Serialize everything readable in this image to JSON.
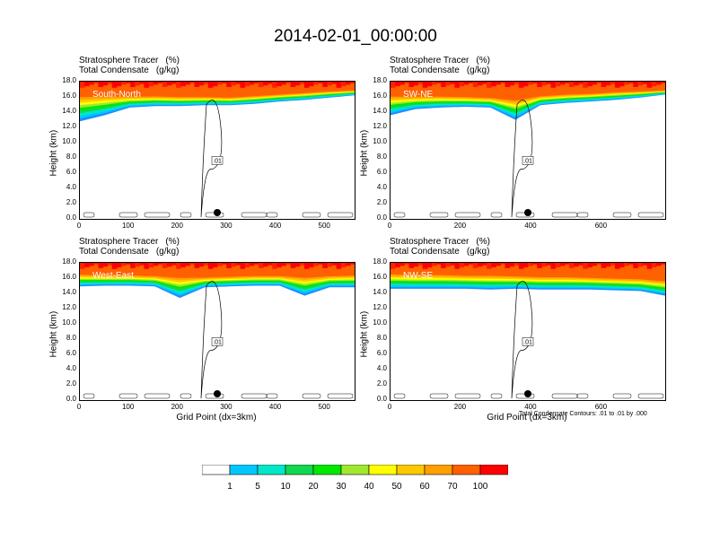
{
  "title": "2014-02-01_00:00:00",
  "header_line1": "Stratosphere Tracer",
  "header_line1_unit": "(%)",
  "header_line2": "Total Condensate",
  "header_line2_unit": "(g/kg)",
  "ylabel": "Height (km)",
  "xlabel": "Grid Point (dx=3km)",
  "footnote": "Total Condensate Contours: .01 to .01 by .000",
  "contour_label": ".01",
  "yticks": [
    "0.0",
    "2.0",
    "4.0",
    "6.0",
    "8.0",
    "10.0",
    "12.0",
    "14.0",
    "16.0",
    "18.0"
  ],
  "colors": {
    "fill": [
      "#ffffff",
      "#1e8bff",
      "#00c8ff",
      "#00e8c8",
      "#10d850",
      "#00e800",
      "#a0e830",
      "#ffff00",
      "#ffc800",
      "#ffa000",
      "#ff6000",
      "#ff0000"
    ]
  },
  "colorbar": {
    "labels": [
      "1",
      "5",
      "10",
      "20",
      "30",
      "40",
      "50",
      "60",
      "70",
      "100"
    ]
  },
  "chart_data": [
    {
      "type": "heatmap",
      "panel_label": "South-North",
      "x_range": [
        0,
        560
      ],
      "xticks": [
        "0",
        "100",
        "200",
        "300",
        "400",
        "500"
      ],
      "ylim": [
        0,
        18
      ],
      "tracer_100_base_km": [
        16.3,
        16.3,
        16.2,
        16.2,
        16.1,
        16.1,
        16.0,
        16.2,
        16.4,
        16.6,
        16.8,
        16.9
      ],
      "tracer_1_base_km": [
        12.8,
        13.6,
        14.6,
        14.8,
        14.8,
        14.9,
        14.9,
        15.1,
        15.4,
        15.6,
        15.9,
        16.2
      ],
      "marker_x": 280,
      "show_xlabel": false
    },
    {
      "type": "heatmap",
      "panel_label": "SW-NE",
      "x_range": [
        0,
        780
      ],
      "xticks": [
        "0",
        "200",
        "400",
        "600"
      ],
      "ylim": [
        0,
        18
      ],
      "tracer_100_base_km": [
        16.3,
        16.2,
        16.2,
        16.1,
        16.0,
        15.8,
        16.2,
        16.4,
        16.5,
        16.7,
        16.8,
        16.9
      ],
      "tracer_1_base_km": [
        13.6,
        14.4,
        14.6,
        14.7,
        14.6,
        13.0,
        14.9,
        15.2,
        15.4,
        15.6,
        15.9,
        16.3
      ],
      "marker_x": 390,
      "show_xlabel": false
    },
    {
      "type": "heatmap",
      "panel_label": "West-East",
      "x_range": [
        0,
        560
      ],
      "xticks": [
        "0",
        "100",
        "200",
        "300",
        "400",
        "500"
      ],
      "ylim": [
        0,
        18
      ],
      "tracer_100_base_km": [
        16.6,
        16.5,
        16.5,
        16.4,
        16.3,
        16.2,
        16.3,
        16.4,
        16.4,
        16.3,
        16.4,
        16.5
      ],
      "tracer_1_base_km": [
        14.9,
        15.0,
        15.0,
        14.9,
        13.4,
        14.8,
        14.9,
        15.0,
        15.0,
        13.7,
        14.8,
        14.8
      ],
      "marker_x": 280,
      "show_xlabel": true
    },
    {
      "type": "heatmap",
      "panel_label": "NW-SE",
      "x_range": [
        0,
        780
      ],
      "xticks": [
        "0",
        "200",
        "400",
        "600"
      ],
      "ylim": [
        0,
        18
      ],
      "tracer_100_base_km": [
        16.7,
        16.6,
        16.6,
        16.5,
        16.5,
        16.4,
        16.3,
        16.3,
        16.2,
        16.1,
        16.0,
        15.8
      ],
      "tracer_1_base_km": [
        14.6,
        14.6,
        14.6,
        14.6,
        14.5,
        14.6,
        14.5,
        14.5,
        14.5,
        14.4,
        14.3,
        13.7
      ],
      "marker_x": 390,
      "show_xlabel": true
    }
  ]
}
